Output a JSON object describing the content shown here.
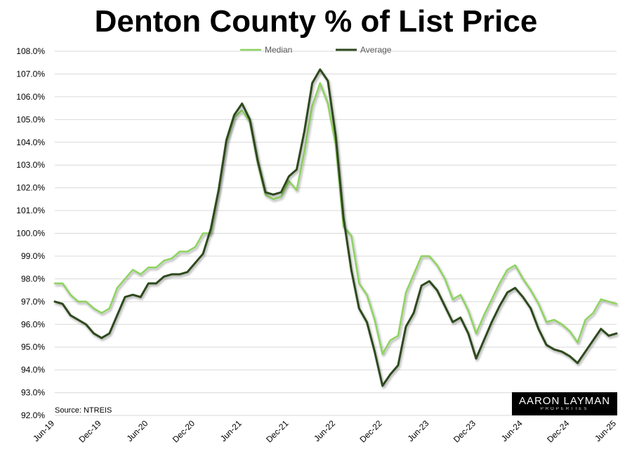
{
  "title": "Denton County % of List Price",
  "source": "Source: NTREIS",
  "logo": {
    "main": "AARON LAYMAN",
    "sub": "PROPERTIES"
  },
  "colors": {
    "median": "#8dd35f",
    "average": "#2e4a1f",
    "grid": "#d9d9d9"
  },
  "chart_data": {
    "type": "line",
    "title": "Denton County % of List Price",
    "xlabel": "",
    "ylabel": "",
    "ylim": [
      92.0,
      108.0
    ],
    "yticks": [
      "92.0%",
      "93.0%",
      "94.0%",
      "95.0%",
      "96.0%",
      "97.0%",
      "98.0%",
      "99.0%",
      "100.0%",
      "101.0%",
      "102.0%",
      "103.0%",
      "104.0%",
      "105.0%",
      "106.0%",
      "107.0%",
      "108.0%"
    ],
    "xtick_labels": [
      "Jun-19",
      "Dec-19",
      "Jun-20",
      "Dec-20",
      "Jun-21",
      "Dec-21",
      "Jun-22",
      "Dec-22",
      "Jun-23",
      "Dec-23",
      "Jun-24",
      "Dec-24",
      "Jun-25"
    ],
    "x": [
      "Jun-19",
      "Jul-19",
      "Aug-19",
      "Sep-19",
      "Oct-19",
      "Nov-19",
      "Dec-19",
      "Jan-20",
      "Feb-20",
      "Mar-20",
      "Apr-20",
      "May-20",
      "Jun-20",
      "Jul-20",
      "Aug-20",
      "Sep-20",
      "Oct-20",
      "Nov-20",
      "Dec-20",
      "Jan-21",
      "Feb-21",
      "Mar-21",
      "Apr-21",
      "May-21",
      "Jun-21",
      "Jul-21",
      "Aug-21",
      "Sep-21",
      "Oct-21",
      "Nov-21",
      "Dec-21",
      "Jan-22",
      "Feb-22",
      "Mar-22",
      "Apr-22",
      "May-22",
      "Jun-22",
      "Jul-22",
      "Aug-22",
      "Sep-22",
      "Oct-22",
      "Nov-22",
      "Dec-22",
      "Jan-23",
      "Feb-23",
      "Mar-23",
      "Apr-23",
      "May-23",
      "Jun-23",
      "Jul-23",
      "Aug-23",
      "Sep-23",
      "Oct-23",
      "Nov-23",
      "Dec-23",
      "Jan-24",
      "Feb-24",
      "Mar-24",
      "Apr-24",
      "May-24",
      "Jun-24",
      "Jul-24",
      "Aug-24",
      "Sep-24",
      "Oct-24",
      "Nov-24",
      "Dec-24",
      "Jan-25",
      "Feb-25",
      "Mar-25",
      "Apr-25",
      "May-25",
      "Jun-25"
    ],
    "legend_position": "top-center",
    "grid": true,
    "series": [
      {
        "name": "Median",
        "values": [
          97.8,
          97.8,
          97.3,
          97.0,
          97.0,
          96.7,
          96.5,
          96.7,
          97.6,
          98.0,
          98.4,
          98.2,
          98.5,
          98.5,
          98.8,
          98.9,
          99.2,
          99.2,
          99.4,
          100.0,
          100.0,
          101.9,
          104.0,
          105.1,
          105.4,
          104.9,
          103.1,
          101.7,
          101.5,
          101.6,
          102.3,
          101.9,
          103.6,
          105.6,
          106.6,
          105.7,
          103.9,
          100.3,
          99.9,
          97.8,
          97.3,
          96.2,
          94.7,
          95.3,
          95.5,
          97.4,
          98.2,
          99.0,
          99.0,
          98.6,
          98.0,
          97.1,
          97.3,
          96.6,
          95.6,
          96.4,
          97.1,
          97.8,
          98.4,
          98.6,
          98.0,
          97.5,
          96.9,
          96.1,
          96.2,
          96.0,
          95.7,
          95.2,
          96.2,
          96.5,
          97.1,
          97.0,
          96.9
        ]
      },
      {
        "name": "Average",
        "values": [
          97.0,
          96.9,
          96.4,
          96.2,
          96.0,
          95.6,
          95.4,
          95.6,
          96.4,
          97.2,
          97.3,
          97.2,
          97.8,
          97.8,
          98.1,
          98.2,
          98.2,
          98.3,
          98.7,
          99.1,
          100.2,
          101.9,
          104.1,
          105.2,
          105.7,
          105.0,
          103.2,
          101.8,
          101.7,
          101.8,
          102.5,
          102.8,
          104.5,
          106.6,
          107.2,
          106.7,
          104.3,
          100.7,
          98.4,
          96.7,
          96.1,
          94.8,
          93.3,
          93.8,
          94.2,
          95.9,
          96.5,
          97.7,
          97.9,
          97.5,
          96.8,
          96.1,
          96.3,
          95.6,
          94.5,
          95.3,
          96.1,
          96.8,
          97.4,
          97.6,
          97.2,
          96.7,
          95.8,
          95.1,
          94.9,
          94.8,
          94.6,
          94.3,
          94.8,
          95.3,
          95.8,
          95.5,
          95.6
        ]
      }
    ]
  }
}
